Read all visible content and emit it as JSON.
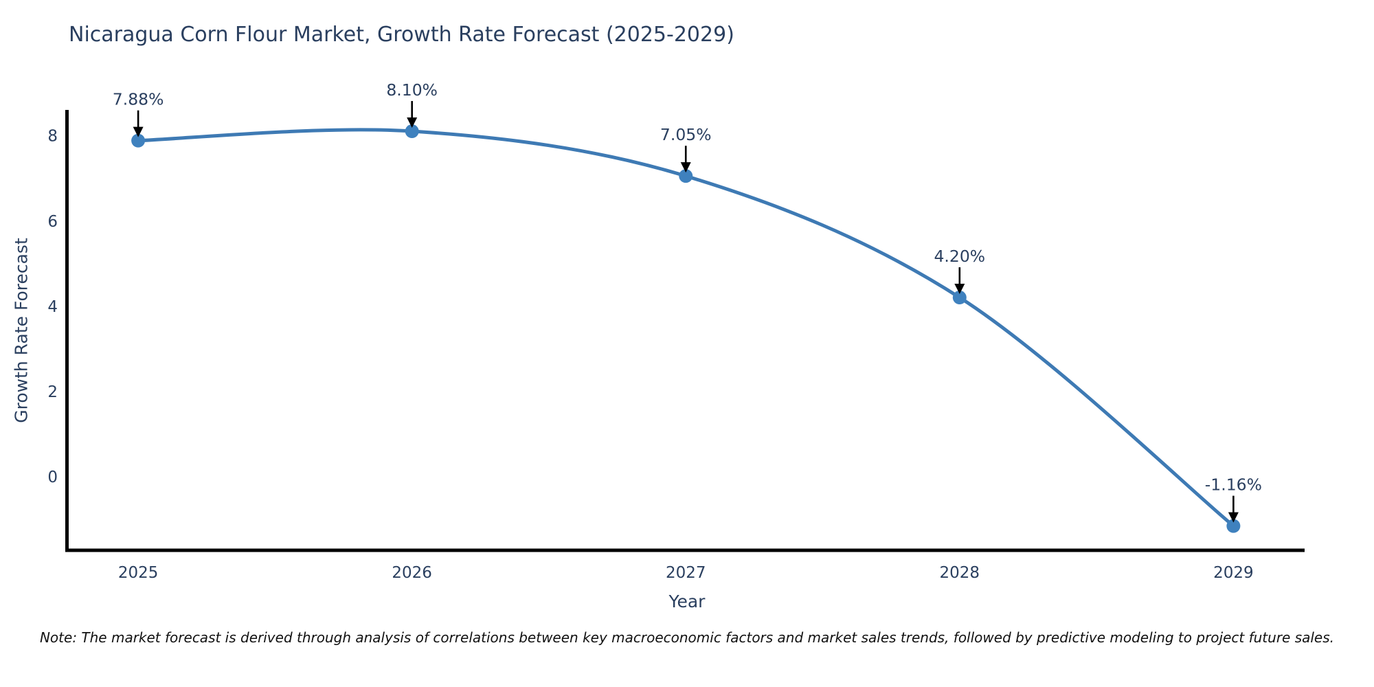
{
  "chart_data": {
    "type": "line",
    "title": "Nicaragua Corn Flour Market, Growth Rate Forecast (2025-2029)",
    "xlabel": "Year",
    "ylabel": "Growth Rate Forecast",
    "x": [
      2025,
      2026,
      2027,
      2028,
      2029
    ],
    "x_tick_labels": [
      "2025",
      "2026",
      "2027",
      "2028",
      "2029"
    ],
    "series": [
      {
        "name": "Growth Rate Forecast",
        "values": [
          7.88,
          8.1,
          7.05,
          4.2,
          -1.16
        ]
      }
    ],
    "point_labels": [
      "7.88%",
      "8.10%",
      "7.05%",
      "4.20%",
      "-1.16%"
    ],
    "yticks": [
      0,
      2,
      4,
      6,
      8
    ],
    "xlim": [
      2024.74,
      2029.26
    ],
    "ylim": [
      -1.73,
      8.6
    ],
    "grid": false,
    "legend": "none",
    "colors": {
      "line": "#3e7ab4",
      "marker": "#3f81be",
      "axis": "#000000",
      "text": "#2a3f5f",
      "annotation_text": "#2a3f5f",
      "arrow": "#000000"
    }
  },
  "note": "Note: The market forecast is derived through analysis of correlations between key macroeconomic factors and market sales trends, followed by predictive modeling to project future sales."
}
